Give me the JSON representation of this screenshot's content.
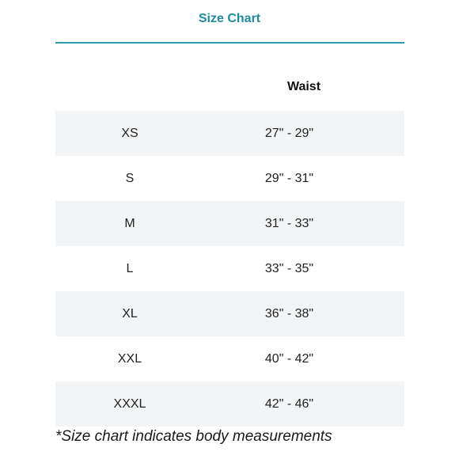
{
  "title": "Size Chart",
  "colors": {
    "accent": "#1f8a9c",
    "row_shade": "#f3f4f6"
  },
  "table": {
    "column_header_waist": "Waist",
    "rows": [
      {
        "size": "XS",
        "waist": "27\" - 29\""
      },
      {
        "size": "S",
        "waist": "29\" - 31\""
      },
      {
        "size": "M",
        "waist": "31\" - 33\""
      },
      {
        "size": "L",
        "waist": "33\" - 35\""
      },
      {
        "size": "XL",
        "waist": "36\" - 38\""
      },
      {
        "size": "XXL",
        "waist": "40\" - 42\""
      },
      {
        "size": "XXXL",
        "waist": "42\" - 46\""
      }
    ]
  },
  "footnote": "*Size chart indicates body measurements"
}
